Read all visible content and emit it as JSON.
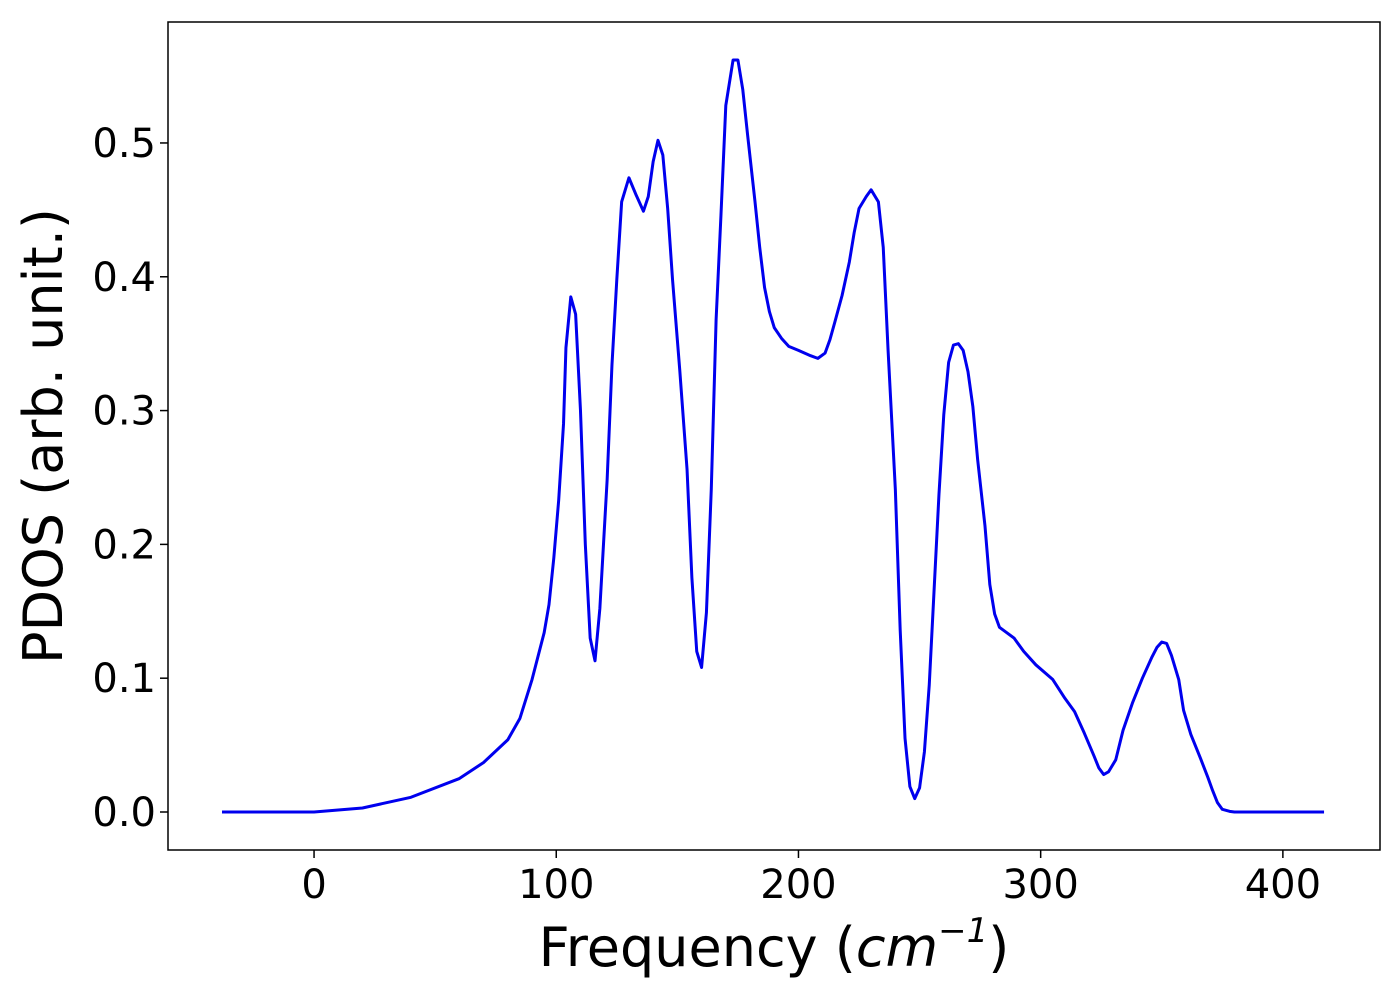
{
  "chart_data": {
    "type": "line",
    "color": "#0000ee",
    "xlabel": [
      "Frequency (",
      "cm",
      "−1",
      ")"
    ],
    "ylabel": "PDOS (arb. unit.)",
    "x": [
      -38,
      0,
      20,
      40,
      60,
      70,
      80,
      85,
      90,
      95,
      97,
      99,
      101,
      103,
      104,
      106,
      108,
      110,
      112,
      114,
      116,
      118,
      121,
      123,
      125,
      127,
      130,
      133,
      136,
      138,
      140,
      142,
      144,
      146,
      148,
      151,
      154,
      156,
      158,
      160,
      162,
      164,
      166,
      168,
      170,
      173,
      175,
      177,
      179,
      182,
      184,
      186,
      188,
      190,
      193,
      196,
      200,
      205,
      208,
      211,
      213,
      215,
      218,
      221,
      223,
      225,
      228,
      230,
      233,
      235,
      237,
      240,
      242,
      244,
      246,
      248,
      250,
      252,
      254,
      256,
      258,
      260,
      262,
      264,
      266,
      268,
      270,
      272,
      274,
      277,
      279,
      281,
      283,
      286,
      289,
      293,
      298,
      305,
      310,
      314,
      318,
      322,
      324,
      326,
      328,
      331,
      334,
      338,
      342,
      346,
      348,
      350,
      352,
      354,
      357,
      359,
      362,
      366,
      369,
      371,
      373,
      375,
      378,
      380,
      417
    ],
    "values": [
      0,
      0,
      0.003,
      0.011,
      0.025,
      0.037,
      0.054,
      0.07,
      0.099,
      0.134,
      0.155,
      0.19,
      0.233,
      0.29,
      0.347,
      0.385,
      0.372,
      0.3,
      0.2,
      0.13,
      0.113,
      0.152,
      0.248,
      0.334,
      0.398,
      0.456,
      0.474,
      0.461,
      0.449,
      0.46,
      0.486,
      0.502,
      0.491,
      0.451,
      0.398,
      0.33,
      0.256,
      0.175,
      0.12,
      0.108,
      0.149,
      0.241,
      0.368,
      0.446,
      0.528,
      0.562,
      0.562,
      0.54,
      0.506,
      0.457,
      0.422,
      0.392,
      0.374,
      0.362,
      0.354,
      0.348,
      0.345,
      0.341,
      0.339,
      0.343,
      0.353,
      0.366,
      0.386,
      0.411,
      0.433,
      0.451,
      0.46,
      0.465,
      0.456,
      0.422,
      0.345,
      0.241,
      0.136,
      0.055,
      0.019,
      0.01,
      0.018,
      0.045,
      0.095,
      0.166,
      0.237,
      0.297,
      0.336,
      0.349,
      0.35,
      0.345,
      0.329,
      0.303,
      0.263,
      0.214,
      0.17,
      0.148,
      0.138,
      0.134,
      0.13,
      0.12,
      0.11,
      0.099,
      0.085,
      0.075,
      0.059,
      0.042,
      0.033,
      0.028,
      0.03,
      0.039,
      0.061,
      0.082,
      0.1,
      0.116,
      0.123,
      0.127,
      0.126,
      0.117,
      0.099,
      0.076,
      0.058,
      0.04,
      0.026,
      0.016,
      0.007,
      0.002,
      0.0005,
      0,
      0
    ],
    "xlim": [
      -60.3,
      440.1
    ],
    "ylim": [
      -0.0284,
      0.5904
    ],
    "xticks": [
      0,
      100,
      200,
      300,
      400
    ],
    "yticks": [
      {
        "value": 0,
        "label": "0.0"
      },
      0.1,
      0.2,
      0.3,
      0.4,
      0.5
    ]
  }
}
